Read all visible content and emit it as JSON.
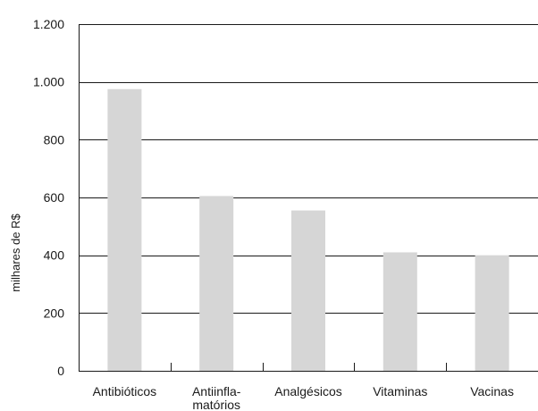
{
  "chart_data": {
    "type": "bar",
    "categories": [
      [
        "Antibióticos"
      ],
      [
        "Antiinfla-",
        "matórios"
      ],
      [
        "Analgésicos"
      ],
      [
        "Vitaminas"
      ],
      [
        "Vacinas"
      ]
    ],
    "values": [
      975,
      605,
      555,
      410,
      400
    ],
    "ylabel": "milhares de R$",
    "ylim": [
      0,
      1200
    ],
    "yticks": [
      0,
      200,
      400,
      600,
      800,
      1000,
      1200
    ],
    "ytick_labels": [
      "0",
      "200",
      "400",
      "600",
      "800",
      "1.000",
      "1.200"
    ],
    "grid": true,
    "bar_color": "#d6d6d6"
  }
}
